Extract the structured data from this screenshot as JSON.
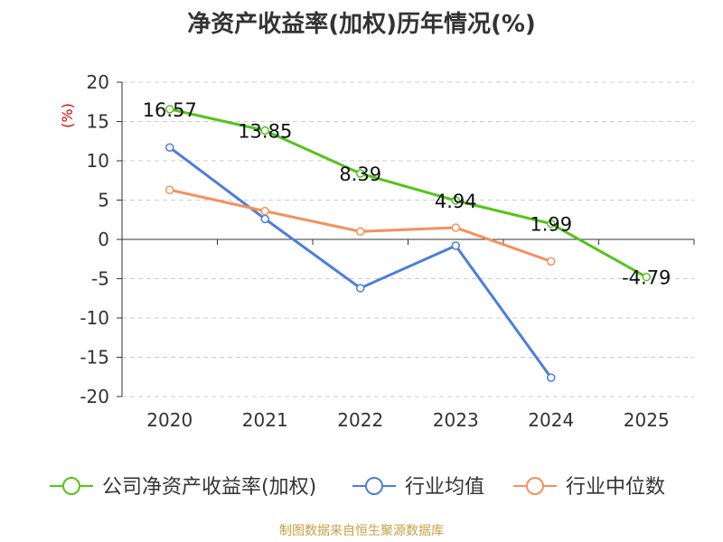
{
  "chart_data": {
    "type": "line",
    "title": "净资产收益率(加权)历年情况(%)",
    "ylabel": "(%)",
    "xlabel": "",
    "categories": [
      "2020",
      "2021",
      "2022",
      "2023",
      "2024",
      "2025"
    ],
    "ylim": [
      -20,
      20
    ],
    "yticks": [
      20,
      15,
      10,
      5,
      0,
      -5,
      -10,
      -15,
      -20
    ],
    "grid": true,
    "legend_position": "bottom",
    "series": [
      {
        "name": "公司净资产收益率(加权)",
        "color": "#52c41a",
        "values": [
          16.57,
          13.85,
          8.39,
          4.94,
          1.99,
          -4.79
        ],
        "labels": [
          "16.57",
          "13.85",
          "8.39",
          "4.94",
          "1.99",
          "-4.79"
        ]
      },
      {
        "name": "行业均值",
        "color": "#4a7fd9",
        "values": [
          11.7,
          2.6,
          -6.2,
          -0.8,
          -17.6,
          null
        ]
      },
      {
        "name": "行业中位数",
        "color": "#f5905a",
        "values": [
          6.3,
          3.6,
          1.0,
          1.5,
          -2.8,
          null
        ]
      }
    ]
  },
  "footer": "制图数据来自恒生聚源数据库"
}
